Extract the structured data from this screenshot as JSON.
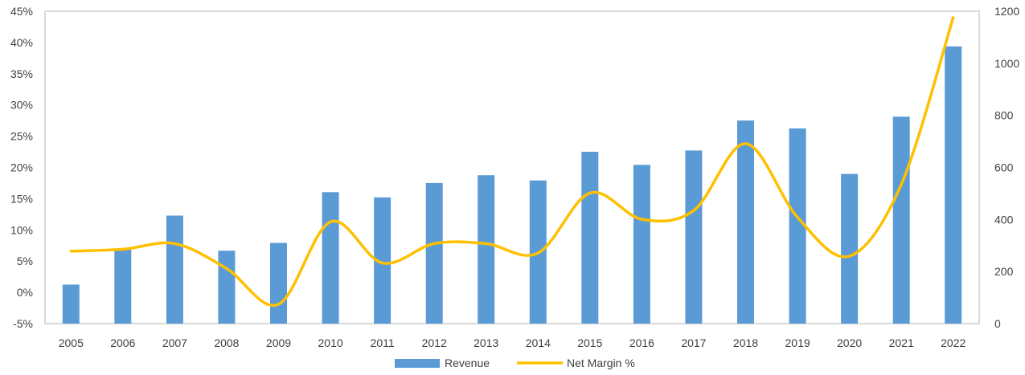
{
  "chart_data": {
    "type": "bar",
    "title": "",
    "xlabel": "",
    "ylabel": "",
    "ylabel_right": "",
    "categories": [
      "2005",
      "2006",
      "2007",
      "2008",
      "2009",
      "2010",
      "2011",
      "2012",
      "2013",
      "2014",
      "2015",
      "2016",
      "2017",
      "2018",
      "2019",
      "2020",
      "2021",
      "2022"
    ],
    "ylim_left": [
      -0.05,
      0.45
    ],
    "left_ticks": [
      "-5%",
      "0%",
      "5%",
      "10%",
      "15%",
      "20%",
      "25%",
      "30%",
      "35%",
      "40%",
      "45%"
    ],
    "ylim_right": [
      0,
      1200
    ],
    "right_ticks": [
      "0",
      "200",
      "400",
      "600",
      "800",
      "1000",
      "1200"
    ],
    "grid": false,
    "legend_position": "bottom",
    "series": [
      {
        "name": "Revenue",
        "type": "bar",
        "axis": "right",
        "color": "#5B9BD5",
        "values": [
          150,
          285,
          415,
          280,
          310,
          505,
          485,
          540,
          570,
          550,
          660,
          610,
          665,
          780,
          750,
          575,
          795,
          1065
        ]
      },
      {
        "name": "Net Margin %",
        "type": "line",
        "axis": "left",
        "color": "#FFC000",
        "values": [
          0.066,
          0.069,
          0.078,
          0.038,
          -0.019,
          0.113,
          0.047,
          0.078,
          0.078,
          0.063,
          0.159,
          0.117,
          0.131,
          0.238,
          0.12,
          0.058,
          0.173,
          0.44
        ]
      }
    ]
  }
}
